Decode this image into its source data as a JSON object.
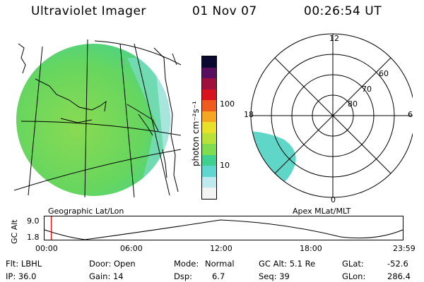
{
  "header": {
    "title": "Ultraviolet Imager",
    "date": "01 Nov 07",
    "time": "00:26:54 UT"
  },
  "left_panel": {
    "caption": "Geographic Lat/Lon"
  },
  "colorbar": {
    "unit_label": "photon cm⁻²s⁻¹",
    "ticks": [
      "100",
      "10"
    ],
    "colors": [
      "#f4f4f4",
      "#bfe9ef",
      "#5fd6d0",
      "#3fcf8f",
      "#7fdc4f",
      "#b8e23a",
      "#e8e02a",
      "#f5a623",
      "#ef5a1e",
      "#d9141e",
      "#a0103f",
      "#5a0f5e",
      "#0a0730"
    ]
  },
  "polar_plot": {
    "caption": "Apex MLat/MLT",
    "mlt_labels": {
      "top": "12",
      "bottom": "0",
      "left": "18",
      "right": "6"
    },
    "lat_labels": [
      "60",
      "70",
      "80"
    ]
  },
  "altitude_strip": {
    "axis_label": "GC Alt",
    "y_ticks": [
      "9.0",
      "1.8"
    ],
    "x_ticks": [
      "00:00",
      "06:00",
      "12:00",
      "18:00",
      "23:59"
    ],
    "current_time_fraction": 0.019
  },
  "info": {
    "row1": {
      "flt": "Flt: LBHL",
      "door": "Door: Open",
      "mode_label": "Mode:",
      "mode_value": "Normal",
      "gc_alt": "GC Alt: 5.1 Re",
      "glat_label": "GLat:",
      "glat_value": "-52.6"
    },
    "row2": {
      "ip": "IP: 36.0",
      "gain": "Gain: 14",
      "dsp_label": "Dsp:",
      "dsp_value": "6.7",
      "seq": "Seq: 39",
      "glon_label": "GLon:",
      "glon_value": "286.4"
    }
  },
  "colors": {
    "disk_fill": "#72d861",
    "disk_fill_dim": "#5ed4c4",
    "polar_patch": "#5fd6c8",
    "time_marker": "#e21b1b"
  }
}
